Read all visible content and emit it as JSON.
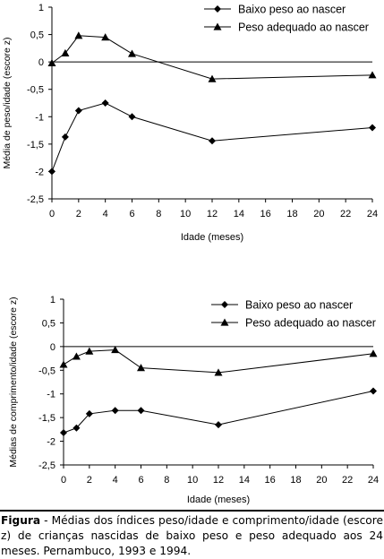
{
  "charts": [
    {
      "type": "line",
      "ylabel": "Média de peso/idade (escore z)",
      "xlabel": "Idade (meses)",
      "x": [
        0,
        1,
        2,
        4,
        6,
        12,
        24
      ],
      "ylim": [
        -2.5,
        1
      ],
      "yticks": [
        "1",
        "0,5",
        "0",
        "-0,5",
        "-1",
        "-1,5",
        "-2",
        "-2,5"
      ],
      "xticks": [
        "0",
        "2",
        "4",
        "6",
        "8",
        "10",
        "12",
        "14",
        "16",
        "18",
        "20",
        "22",
        "24"
      ],
      "legend_position": "top-right",
      "series": [
        {
          "name": "Baixo peso ao nascer",
          "marker": "diamond",
          "values": [
            -2.0,
            -1.37,
            -0.89,
            -0.75,
            -1.0,
            -1.44,
            -1.2
          ]
        },
        {
          "name": "Peso adequado ao nascer",
          "marker": "triangle",
          "values": [
            -0.02,
            0.16,
            0.48,
            0.45,
            0.15,
            -0.31,
            -0.24
          ]
        }
      ]
    },
    {
      "type": "line",
      "ylabel": "Médias de comprimento/idade (escore z)",
      "xlabel": "Idade (meses)",
      "x": [
        0,
        1,
        2,
        4,
        6,
        12,
        24
      ],
      "ylim": [
        -2.5,
        1
      ],
      "yticks": [
        "1",
        "0,5",
        "0",
        "-0,5",
        "-1",
        "-1,5",
        "-2",
        "-2,5"
      ],
      "xticks": [
        "0",
        "2",
        "4",
        "6",
        "8",
        "10",
        "12",
        "14",
        "16",
        "18",
        "20",
        "22",
        "24"
      ],
      "legend_position": "top-right",
      "series": [
        {
          "name": "Baixo peso ao nascer",
          "marker": "diamond",
          "values": [
            -1.82,
            -1.72,
            -1.42,
            -1.35,
            -1.35,
            -1.65,
            -0.94
          ]
        },
        {
          "name": "Peso adequado ao nascer",
          "marker": "triangle",
          "values": [
            -0.38,
            -0.21,
            -0.1,
            -0.07,
            -0.45,
            -0.55,
            -0.15
          ]
        }
      ]
    }
  ],
  "caption": {
    "label": "Figura",
    "text": " - Médias dos índices peso/idade e comprimento/idade (escore z) de crianças nascidas de baixo peso e peso adequado aos 24 meses. Pernambuco, 1993 e 1994."
  }
}
